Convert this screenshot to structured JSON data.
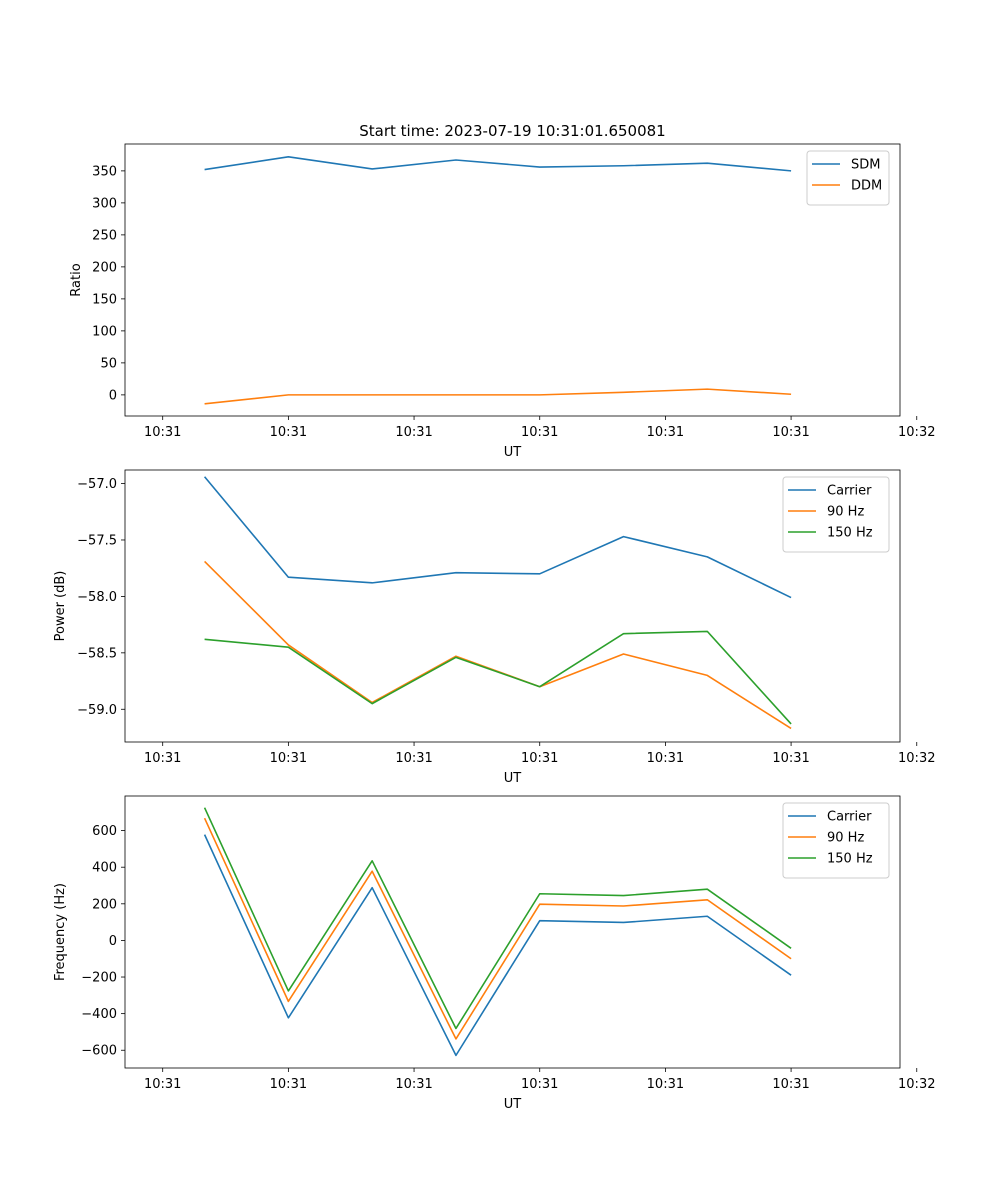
{
  "figure": {
    "title": "Start time: 2023-07-19 10:31:01.650081"
  },
  "colors": {
    "series1": "#1f77b4",
    "series2": "#ff7f0e",
    "series3": "#2ca02c"
  },
  "chart_data": [
    {
      "type": "line",
      "title": "Start time: 2023-07-19 10:31:01.650081",
      "xlabel": "UT",
      "ylabel": "Ratio",
      "xlim": [
        -0.45,
        8.8
      ],
      "ylim": [
        -33,
        392
      ],
      "x_ticks": [
        0,
        1.5,
        3,
        4.5,
        6,
        7.5,
        9
      ],
      "x_tick_labels": [
        "10:31",
        "10:31",
        "10:31",
        "10:31",
        "10:31",
        "10:31",
        "10:32"
      ],
      "y_ticks": [
        0,
        50,
        100,
        150,
        200,
        250,
        300,
        350
      ],
      "y_tick_labels": [
        "0",
        "50",
        "100",
        "150",
        "200",
        "250",
        "300",
        "350"
      ],
      "x": [
        0.5,
        1.5,
        2.5,
        3.5,
        4.5,
        5.5,
        6.5,
        7.5
      ],
      "legend": "top-right",
      "series": [
        {
          "name": "SDM",
          "color_key": "series1",
          "values": [
            352,
            372,
            353,
            367,
            356,
            358,
            362,
            350
          ]
        },
        {
          "name": "DDM",
          "color_key": "series2",
          "values": [
            -14,
            0,
            0,
            0,
            0,
            4,
            9,
            1
          ]
        }
      ]
    },
    {
      "type": "line",
      "title": "",
      "xlabel": "UT",
      "ylabel": "Power (dB)",
      "xlim": [
        -0.45,
        8.8
      ],
      "ylim": [
        -59.29,
        -56.88
      ],
      "x_ticks": [
        0,
        1.5,
        3,
        4.5,
        6,
        7.5,
        9
      ],
      "x_tick_labels": [
        "10:31",
        "10:31",
        "10:31",
        "10:31",
        "10:31",
        "10:31",
        "10:32"
      ],
      "y_ticks": [
        -59.0,
        -58.5,
        -58.0,
        -57.5,
        -57.0
      ],
      "y_tick_labels": [
        "−59.0",
        "−58.5",
        "−58.0",
        "−57.5",
        "−57.0"
      ],
      "x": [
        0.5,
        1.5,
        2.5,
        3.5,
        4.5,
        5.5,
        6.5,
        7.5
      ],
      "legend": "top-right",
      "series": [
        {
          "name": "Carrier",
          "color_key": "series1",
          "values": [
            -56.94,
            -57.83,
            -57.88,
            -57.79,
            -57.8,
            -57.47,
            -57.65,
            -58.01
          ]
        },
        {
          "name": "90 Hz",
          "color_key": "series2",
          "values": [
            -57.69,
            -58.43,
            -58.94,
            -58.53,
            -58.8,
            -58.51,
            -58.7,
            -59.17
          ]
        },
        {
          "name": "150 Hz",
          "color_key": "series3",
          "values": [
            -58.38,
            -58.45,
            -58.95,
            -58.54,
            -58.8,
            -58.33,
            -58.31,
            -59.13
          ]
        }
      ]
    },
    {
      "type": "line",
      "title": "",
      "xlabel": "UT",
      "ylabel": "Frequency (Hz)",
      "xlim": [
        -0.45,
        8.8
      ],
      "ylim": [
        -697,
        789
      ],
      "x_ticks": [
        0,
        1.5,
        3,
        4.5,
        6,
        7.5,
        9
      ],
      "x_tick_labels": [
        "10:31",
        "10:31",
        "10:31",
        "10:31",
        "10:31",
        "10:31",
        "10:32"
      ],
      "y_ticks": [
        -600,
        -400,
        -200,
        0,
        200,
        400,
        600
      ],
      "y_tick_labels": [
        "−600",
        "−400",
        "−200",
        "0",
        "200",
        "400",
        "600"
      ],
      "x": [
        0.5,
        1.5,
        2.5,
        3.5,
        4.5,
        5.5,
        6.5,
        7.5
      ],
      "legend": "top-right",
      "series": [
        {
          "name": "Carrier",
          "color_key": "series1",
          "values": [
            578,
            -423,
            288,
            -628,
            108,
            98,
            132,
            -190
          ]
        },
        {
          "name": "90 Hz",
          "color_key": "series2",
          "values": [
            668,
            -333,
            378,
            -538,
            198,
            188,
            222,
            -100
          ]
        },
        {
          "name": "150 Hz",
          "color_key": "series3",
          "values": [
            725,
            -276,
            435,
            -481,
            255,
            245,
            280,
            -43
          ]
        }
      ]
    }
  ]
}
